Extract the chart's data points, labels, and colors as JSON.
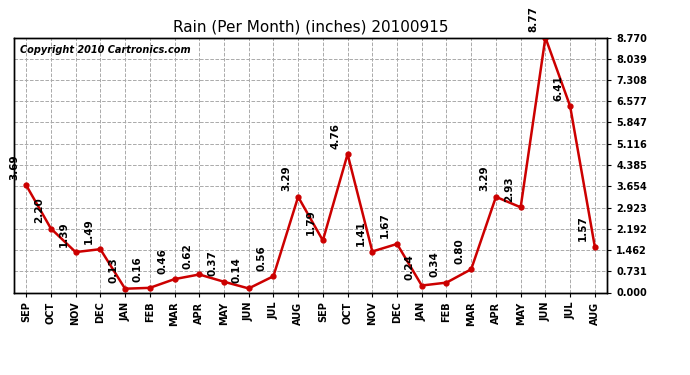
{
  "title": "Rain (Per Month) (inches) 20100915",
  "copyright": "Copyright 2010 Cartronics.com",
  "months": [
    "SEP",
    "OCT",
    "NOV",
    "DEC",
    "JAN",
    "FEB",
    "MAR",
    "APR",
    "MAY",
    "JUN",
    "JUL",
    "AUG",
    "SEP",
    "OCT",
    "NOV",
    "DEC",
    "JAN",
    "FEB",
    "MAR",
    "APR",
    "MAY",
    "JUN",
    "JUL",
    "AUG"
  ],
  "values": [
    3.69,
    2.2,
    1.39,
    1.49,
    0.13,
    0.16,
    0.46,
    0.62,
    0.37,
    0.14,
    0.56,
    3.29,
    1.79,
    4.76,
    1.41,
    1.67,
    0.24,
    0.34,
    0.8,
    3.29,
    2.93,
    8.77,
    6.41,
    1.57
  ],
  "line_color": "#cc0000",
  "marker_color": "#cc0000",
  "bg_color": "#ffffff",
  "grid_color": "#aaaaaa",
  "yticks": [
    0.0,
    0.731,
    1.462,
    2.192,
    2.923,
    3.654,
    4.385,
    5.116,
    5.847,
    6.577,
    7.308,
    8.039,
    8.77
  ],
  "ymax": 8.77,
  "ymin": 0.0,
  "title_fontsize": 11,
  "label_fontsize": 7,
  "annotation_fontsize": 7.5,
  "copyright_fontsize": 7
}
